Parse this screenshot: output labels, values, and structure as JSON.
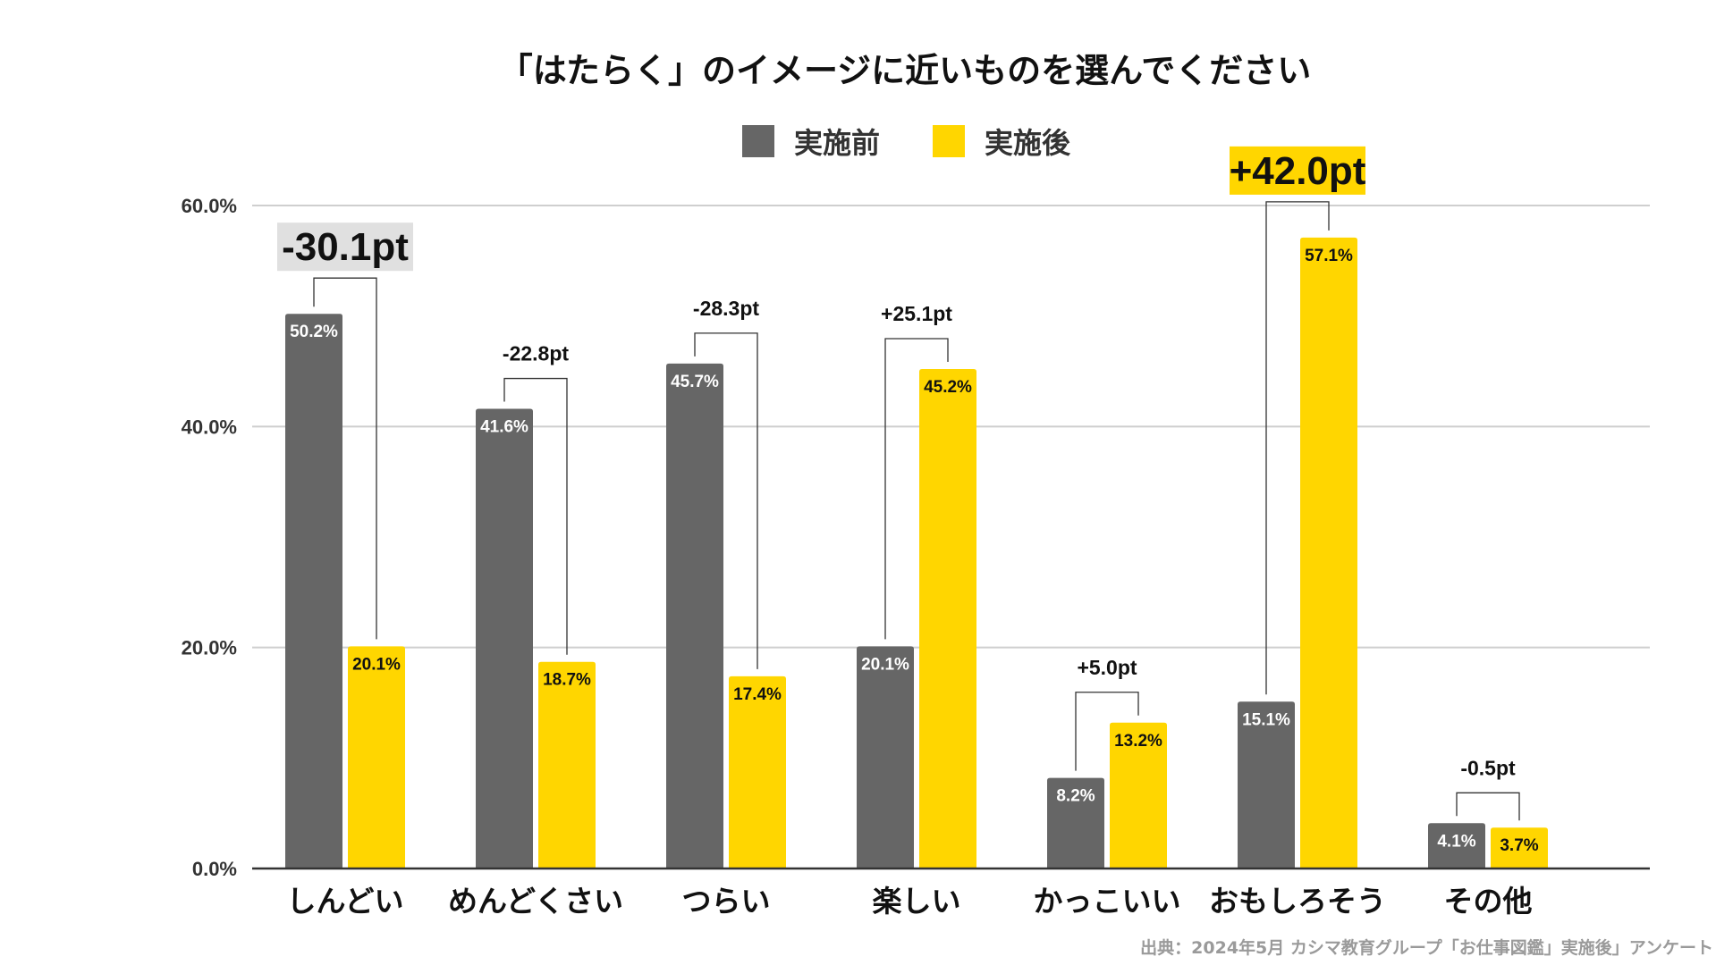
{
  "chart_data": {
    "type": "bar",
    "title": "「はたらく」のイメージに近いものを選んでください",
    "categories": [
      "しんどい",
      "めんどくさい",
      "つらい",
      "楽しい",
      "かっこいい",
      "おもしろそう",
      "その他"
    ],
    "series": [
      {
        "name": "実施前",
        "color": "#666666",
        "values": [
          50.2,
          41.6,
          45.7,
          20.1,
          8.2,
          15.1,
          4.1
        ],
        "labels": [
          "50.2%",
          "41.6%",
          "45.7%",
          "20.1%",
          "8.2%",
          "15.1%",
          "4.1%"
        ]
      },
      {
        "name": "実施後",
        "color": "#FFD600",
        "values": [
          20.1,
          18.7,
          17.4,
          45.2,
          13.2,
          57.1,
          3.7
        ],
        "labels": [
          "20.1%",
          "18.7%",
          "17.4%",
          "45.2%",
          "13.2%",
          "57.1%",
          "3.7%"
        ]
      }
    ],
    "differences": [
      {
        "label": "-30.1pt",
        "emphasis": "gray"
      },
      {
        "label": "-22.8pt",
        "emphasis": "none"
      },
      {
        "label": "-28.3pt",
        "emphasis": "none"
      },
      {
        "label": "+25.1pt",
        "emphasis": "none"
      },
      {
        "label": "+5.0pt",
        "emphasis": "none"
      },
      {
        "label": "+42.0pt",
        "emphasis": "yellow"
      },
      {
        "label": "-0.5pt",
        "emphasis": "none"
      }
    ],
    "ylim": [
      0,
      60
    ],
    "yticks": [
      0,
      20,
      40,
      60
    ],
    "ytick_labels": [
      "0.0%",
      "20.0%",
      "40.0%",
      "60.0%"
    ],
    "grid": true,
    "legend_position": "top-center",
    "source": "出典：2024年5月 カシマ教育グループ「お仕事図鑑」実施後」アンケート"
  }
}
